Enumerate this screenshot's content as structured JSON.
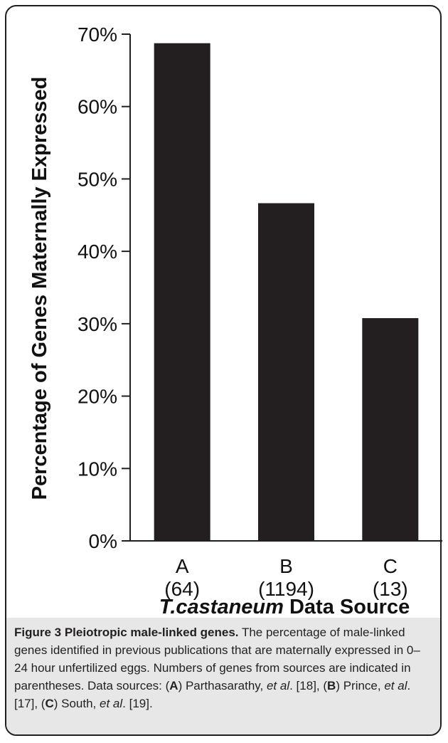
{
  "chart_data": {
    "type": "bar",
    "categories": [
      "A",
      "B",
      "C"
    ],
    "category_counts": [
      "(64)",
      "(1194)",
      "(13)"
    ],
    "values": [
      68.75,
      46.65,
      30.77
    ],
    "xlabel_italic": "T.castaneum",
    "xlabel_rest": " Data Source",
    "ylabel": "Percentage of Genes Maternally Expressed",
    "ylim": [
      0,
      70
    ],
    "yticks": [
      0,
      10,
      20,
      30,
      40,
      50,
      60,
      70
    ],
    "ytick_labels": [
      "0%",
      "10%",
      "20%",
      "30%",
      "40%",
      "50%",
      "60%",
      "70%"
    ],
    "bar_color": "#231f20",
    "grid": false
  },
  "caption": {
    "figure_label": "Figure 3 Pleiotropic male-linked genes.",
    "text_1": " The percentage of male-linked genes identified in previous publications that are maternally expressed in 0–24 hour unfertilized eggs. Numbers of genes from sources are indicated in parentheses. Data sources: (",
    "src_a": "A",
    "text_2": ") Parthasarathy, ",
    "etal_1": "et al",
    "text_3": ". [18], (",
    "src_b": "B",
    "text_4": ") Prince, ",
    "etal_2": "et al",
    "text_5": ". [17], (",
    "src_c": "C",
    "text_6": ") South, ",
    "etal_3": "et al",
    "text_7": ". [19]."
  }
}
